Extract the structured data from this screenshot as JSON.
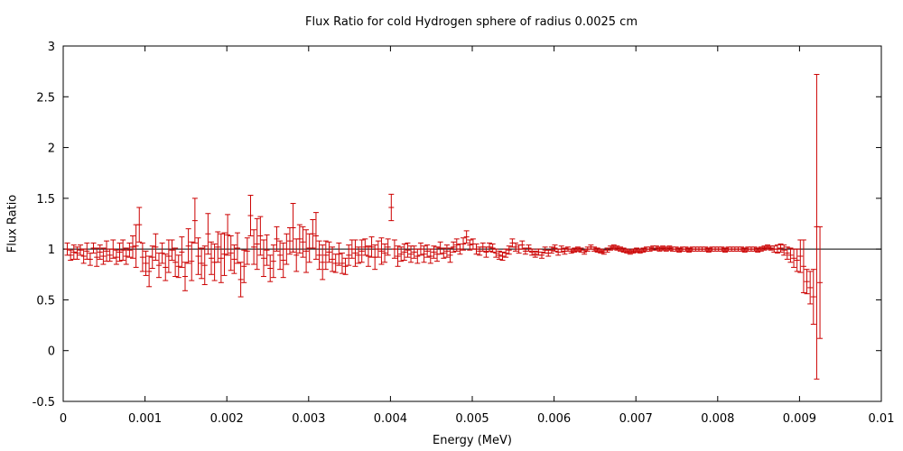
{
  "chart_data": {
    "type": "scatter",
    "title": "Flux Ratio for cold Hydrogen sphere of radius 0.0025 cm",
    "xlabel": "Energy (MeV)",
    "ylabel": "Flux Ratio",
    "xlim": [
      0,
      0.01
    ],
    "ylim": [
      -0.5,
      3
    ],
    "xticks": [
      "0",
      "0.001",
      "0.002",
      "0.003",
      "0.004",
      "0.005",
      "0.006",
      "0.007",
      "0.008",
      "0.009",
      "0.01"
    ],
    "yticks": [
      "-0.5",
      "0",
      "0.5",
      "1",
      "1.5",
      "2",
      "2.5",
      "3"
    ],
    "reference_line": {
      "y": 1,
      "color": "#000000"
    },
    "series_color": "#cc0000",
    "points": [
      {
        "x": 5e-05,
        "y": 1.0,
        "err": 0.06
      },
      {
        "x": 9e-05,
        "y": 0.94,
        "err": 0.05
      },
      {
        "x": 0.00013,
        "y": 0.97,
        "err": 0.07
      },
      {
        "x": 0.00017,
        "y": 0.96,
        "err": 0.06
      },
      {
        "x": 0.00021,
        "y": 0.99,
        "err": 0.05
      },
      {
        "x": 0.00025,
        "y": 0.93,
        "err": 0.07
      },
      {
        "x": 0.00029,
        "y": 0.98,
        "err": 0.08
      },
      {
        "x": 0.00033,
        "y": 0.9,
        "err": 0.06
      },
      {
        "x": 0.00037,
        "y": 1.01,
        "err": 0.05
      },
      {
        "x": 0.00041,
        "y": 0.92,
        "err": 0.09
      },
      {
        "x": 0.00045,
        "y": 0.97,
        "err": 0.07
      },
      {
        "x": 0.00049,
        "y": 0.93,
        "err": 0.08
      },
      {
        "x": 0.00053,
        "y": 0.98,
        "err": 0.1
      },
      {
        "x": 0.00057,
        "y": 0.94,
        "err": 0.06
      },
      {
        "x": 0.00061,
        "y": 1.0,
        "err": 0.09
      },
      {
        "x": 0.00065,
        "y": 0.92,
        "err": 0.07
      },
      {
        "x": 0.00069,
        "y": 0.97,
        "err": 0.09
      },
      {
        "x": 0.00073,
        "y": 0.99,
        "err": 0.1
      },
      {
        "x": 0.00077,
        "y": 0.93,
        "err": 0.08
      },
      {
        "x": 0.00081,
        "y": 0.99,
        "err": 0.07
      },
      {
        "x": 0.00085,
        "y": 1.02,
        "err": 0.11
      },
      {
        "x": 0.00089,
        "y": 1.03,
        "err": 0.21
      },
      {
        "x": 0.00093,
        "y": 1.24,
        "err": 0.17
      },
      {
        "x": 0.00097,
        "y": 0.92,
        "err": 0.14
      },
      {
        "x": 0.00101,
        "y": 0.86,
        "err": 0.12
      },
      {
        "x": 0.00105,
        "y": 0.78,
        "err": 0.15
      },
      {
        "x": 0.00109,
        "y": 0.92,
        "err": 0.11
      },
      {
        "x": 0.00113,
        "y": 1.02,
        "err": 0.13
      },
      {
        "x": 0.00117,
        "y": 0.84,
        "err": 0.12
      },
      {
        "x": 0.00121,
        "y": 0.96,
        "err": 0.1
      },
      {
        "x": 0.00125,
        "y": 0.82,
        "err": 0.13
      },
      {
        "x": 0.00129,
        "y": 0.93,
        "err": 0.16
      },
      {
        "x": 0.00133,
        "y": 0.99,
        "err": 0.1
      },
      {
        "x": 0.00137,
        "y": 0.87,
        "err": 0.14
      },
      {
        "x": 0.00141,
        "y": 0.83,
        "err": 0.11
      },
      {
        "x": 0.00145,
        "y": 0.97,
        "err": 0.15
      },
      {
        "x": 0.00149,
        "y": 0.73,
        "err": 0.14
      },
      {
        "x": 0.00153,
        "y": 1.03,
        "err": 0.17
      },
      {
        "x": 0.00157,
        "y": 0.88,
        "err": 0.19
      },
      {
        "x": 0.00161,
        "y": 1.28,
        "err": 0.22
      },
      {
        "x": 0.00165,
        "y": 0.93,
        "err": 0.18
      },
      {
        "x": 0.00169,
        "y": 0.86,
        "err": 0.15
      },
      {
        "x": 0.00173,
        "y": 0.84,
        "err": 0.19
      },
      {
        "x": 0.00177,
        "y": 1.15,
        "err": 0.2
      },
      {
        "x": 0.00181,
        "y": 0.91,
        "err": 0.16
      },
      {
        "x": 0.00185,
        "y": 0.87,
        "err": 0.18
      },
      {
        "x": 0.00189,
        "y": 1.02,
        "err": 0.15
      },
      {
        "x": 0.00193,
        "y": 0.91,
        "err": 0.24
      },
      {
        "x": 0.00197,
        "y": 0.95,
        "err": 0.21
      },
      {
        "x": 0.00201,
        "y": 1.14,
        "err": 0.2
      },
      {
        "x": 0.00205,
        "y": 0.96,
        "err": 0.17
      },
      {
        "x": 0.00209,
        "y": 0.9,
        "err": 0.14
      },
      {
        "x": 0.00213,
        "y": 1.01,
        "err": 0.15
      },
      {
        "x": 0.00217,
        "y": 0.7,
        "err": 0.17
      },
      {
        "x": 0.00221,
        "y": 0.83,
        "err": 0.16
      },
      {
        "x": 0.00225,
        "y": 0.98,
        "err": 0.13
      },
      {
        "x": 0.00229,
        "y": 1.33,
        "err": 0.2
      },
      {
        "x": 0.00233,
        "y": 1.02,
        "err": 0.17
      },
      {
        "x": 0.00237,
        "y": 1.05,
        "err": 0.25
      },
      {
        "x": 0.00241,
        "y": 1.13,
        "err": 0.19
      },
      {
        "x": 0.00245,
        "y": 0.91,
        "err": 0.18
      },
      {
        "x": 0.00249,
        "y": 0.99,
        "err": 0.15
      },
      {
        "x": 0.00253,
        "y": 0.81,
        "err": 0.13
      },
      {
        "x": 0.00257,
        "y": 0.88,
        "err": 0.16
      },
      {
        "x": 0.00261,
        "y": 1.1,
        "err": 0.12
      },
      {
        "x": 0.00265,
        "y": 0.94,
        "err": 0.14
      },
      {
        "x": 0.00269,
        "y": 0.89,
        "err": 0.17
      },
      {
        "x": 0.00273,
        "y": 1.0,
        "err": 0.15
      },
      {
        "x": 0.00277,
        "y": 1.08,
        "err": 0.13
      },
      {
        "x": 0.00281,
        "y": 1.21,
        "err": 0.24
      },
      {
        "x": 0.00285,
        "y": 0.94,
        "err": 0.16
      },
      {
        "x": 0.00289,
        "y": 1.1,
        "err": 0.14
      },
      {
        "x": 0.00293,
        "y": 1.07,
        "err": 0.15
      },
      {
        "x": 0.00297,
        "y": 0.98,
        "err": 0.21
      },
      {
        "x": 0.00301,
        "y": 1.01,
        "err": 0.14
      },
      {
        "x": 0.00305,
        "y": 1.15,
        "err": 0.14
      },
      {
        "x": 0.00309,
        "y": 1.13,
        "err": 0.23
      },
      {
        "x": 0.00313,
        "y": 0.94,
        "err": 0.14
      },
      {
        "x": 0.00317,
        "y": 0.87,
        "err": 0.17
      },
      {
        "x": 0.00321,
        "y": 0.94,
        "err": 0.14
      },
      {
        "x": 0.00325,
        "y": 0.97,
        "err": 0.1
      },
      {
        "x": 0.00329,
        "y": 0.9,
        "err": 0.12
      },
      {
        "x": 0.00333,
        "y": 0.86,
        "err": 0.09
      },
      {
        "x": 0.00337,
        "y": 0.95,
        "err": 0.11
      },
      {
        "x": 0.00341,
        "y": 0.86,
        "err": 0.1
      },
      {
        "x": 0.00345,
        "y": 0.83,
        "err": 0.08
      },
      {
        "x": 0.00349,
        "y": 0.94,
        "err": 0.1
      },
      {
        "x": 0.00353,
        "y": 1.0,
        "err": 0.09
      },
      {
        "x": 0.00357,
        "y": 0.96,
        "err": 0.13
      },
      {
        "x": 0.00361,
        "y": 0.94,
        "err": 0.08
      },
      {
        "x": 0.00365,
        "y": 0.98,
        "err": 0.11
      },
      {
        "x": 0.00369,
        "y": 1.02,
        "err": 0.08
      },
      {
        "x": 0.00373,
        "y": 0.93,
        "err": 0.1
      },
      {
        "x": 0.00377,
        "y": 1.02,
        "err": 0.1
      },
      {
        "x": 0.00381,
        "y": 0.92,
        "err": 0.12
      },
      {
        "x": 0.00385,
        "y": 1.0,
        "err": 0.08
      },
      {
        "x": 0.00389,
        "y": 0.98,
        "err": 0.13
      },
      {
        "x": 0.00393,
        "y": 0.96,
        "err": 0.09
      },
      {
        "x": 0.00397,
        "y": 1.02,
        "err": 0.08
      },
      {
        "x": 0.00401,
        "y": 1.41,
        "err": 0.13
      },
      {
        "x": 0.00405,
        "y": 1.0,
        "err": 0.09
      },
      {
        "x": 0.00409,
        "y": 0.93,
        "err": 0.1
      },
      {
        "x": 0.00413,
        "y": 0.95,
        "err": 0.07
      },
      {
        "x": 0.00417,
        "y": 0.97,
        "err": 0.08
      },
      {
        "x": 0.00421,
        "y": 0.99,
        "err": 0.07
      },
      {
        "x": 0.00425,
        "y": 0.95,
        "err": 0.08
      },
      {
        "x": 0.00429,
        "y": 0.97,
        "err": 0.06
      },
      {
        "x": 0.00433,
        "y": 0.93,
        "err": 0.07
      },
      {
        "x": 0.00437,
        "y": 1.0,
        "err": 0.06
      },
      {
        "x": 0.00441,
        "y": 0.95,
        "err": 0.08
      },
      {
        "x": 0.00445,
        "y": 0.98,
        "err": 0.06
      },
      {
        "x": 0.00449,
        "y": 0.93,
        "err": 0.07
      },
      {
        "x": 0.00453,
        "y": 0.97,
        "err": 0.06
      },
      {
        "x": 0.00457,
        "y": 0.95,
        "err": 0.07
      },
      {
        "x": 0.00461,
        "y": 1.01,
        "err": 0.06
      },
      {
        "x": 0.00465,
        "y": 0.96,
        "err": 0.05
      },
      {
        "x": 0.00469,
        "y": 0.98,
        "err": 0.06
      },
      {
        "x": 0.00473,
        "y": 0.94,
        "err": 0.07
      },
      {
        "x": 0.00477,
        "y": 1.02,
        "err": 0.05
      },
      {
        "x": 0.00481,
        "y": 1.04,
        "err": 0.06
      },
      {
        "x": 0.00485,
        "y": 1.0,
        "err": 0.05
      },
      {
        "x": 0.00489,
        "y": 1.05,
        "err": 0.06
      },
      {
        "x": 0.00493,
        "y": 1.12,
        "err": 0.06
      },
      {
        "x": 0.00497,
        "y": 1.04,
        "err": 0.05
      },
      {
        "x": 0.00501,
        "y": 1.05,
        "err": 0.05
      },
      {
        "x": 0.00505,
        "y": 1.0,
        "err": 0.05
      },
      {
        "x": 0.00509,
        "y": 0.98,
        "err": 0.04
      },
      {
        "x": 0.00513,
        "y": 1.02,
        "err": 0.04
      },
      {
        "x": 0.00517,
        "y": 0.97,
        "err": 0.05
      },
      {
        "x": 0.00521,
        "y": 1.02,
        "err": 0.04
      },
      {
        "x": 0.00525,
        "y": 1.01,
        "err": 0.04
      },
      {
        "x": 0.00529,
        "y": 0.96,
        "err": 0.04
      },
      {
        "x": 0.00533,
        "y": 0.94,
        "err": 0.04
      },
      {
        "x": 0.00537,
        "y": 0.93,
        "err": 0.04
      },
      {
        "x": 0.00541,
        "y": 0.96,
        "err": 0.04
      },
      {
        "x": 0.00545,
        "y": 0.99,
        "err": 0.04
      },
      {
        "x": 0.00549,
        "y": 1.06,
        "err": 0.04
      },
      {
        "x": 0.00553,
        "y": 1.02,
        "err": 0.04
      },
      {
        "x": 0.00557,
        "y": 1.0,
        "err": 0.04
      },
      {
        "x": 0.00561,
        "y": 1.04,
        "err": 0.04
      },
      {
        "x": 0.00565,
        "y": 0.98,
        "err": 0.03
      },
      {
        "x": 0.00569,
        "y": 1.01,
        "err": 0.03
      },
      {
        "x": 0.00573,
        "y": 0.97,
        "err": 0.03
      },
      {
        "x": 0.00577,
        "y": 0.95,
        "err": 0.03
      },
      {
        "x": 0.00581,
        "y": 0.97,
        "err": 0.03
      },
      {
        "x": 0.00585,
        "y": 0.94,
        "err": 0.03
      },
      {
        "x": 0.00589,
        "y": 0.99,
        "err": 0.03
      },
      {
        "x": 0.00593,
        "y": 0.96,
        "err": 0.03
      },
      {
        "x": 0.00597,
        "y": 0.99,
        "err": 0.03
      },
      {
        "x": 0.00601,
        "y": 1.01,
        "err": 0.03
      },
      {
        "x": 0.00605,
        "y": 0.97,
        "err": 0.03
      },
      {
        "x": 0.00609,
        "y": 1.0,
        "err": 0.03
      },
      {
        "x": 0.00613,
        "y": 0.98,
        "err": 0.03
      },
      {
        "x": 0.00617,
        "y": 1.0,
        "err": 0.02
      },
      {
        "x": 0.00621,
        "y": 0.98,
        "err": 0.02
      },
      {
        "x": 0.00625,
        "y": 0.99,
        "err": 0.02
      },
      {
        "x": 0.00629,
        "y": 1.0,
        "err": 0.02
      },
      {
        "x": 0.00633,
        "y": 0.99,
        "err": 0.02
      },
      {
        "x": 0.00637,
        "y": 0.97,
        "err": 0.02
      },
      {
        "x": 0.00641,
        "y": 1.0,
        "err": 0.02
      },
      {
        "x": 0.00645,
        "y": 1.02,
        "err": 0.02
      },
      {
        "x": 0.00649,
        "y": 1.0,
        "err": 0.02
      },
      {
        "x": 0.00653,
        "y": 0.99,
        "err": 0.02
      },
      {
        "x": 0.00657,
        "y": 0.98,
        "err": 0.02
      },
      {
        "x": 0.00661,
        "y": 0.97,
        "err": 0.02
      },
      {
        "x": 0.00665,
        "y": 0.99,
        "err": 0.02
      },
      {
        "x": 0.00669,
        "y": 1.01,
        "err": 0.02
      },
      {
        "x": 0.00673,
        "y": 1.02,
        "err": 0.02
      },
      {
        "x": 0.00677,
        "y": 1.01,
        "err": 0.02
      },
      {
        "x": 0.00681,
        "y": 1.0,
        "err": 0.02
      },
      {
        "x": 0.00685,
        "y": 0.99,
        "err": 0.02
      },
      {
        "x": 0.00689,
        "y": 0.98,
        "err": 0.02
      },
      {
        "x": 0.00693,
        "y": 0.97,
        "err": 0.02
      },
      {
        "x": 0.00697,
        "y": 0.98,
        "err": 0.02
      },
      {
        "x": 0.00701,
        "y": 0.99,
        "err": 0.02
      },
      {
        "x": 0.00705,
        "y": 0.98,
        "err": 0.02
      },
      {
        "x": 0.00709,
        "y": 0.99,
        "err": 0.02
      },
      {
        "x": 0.00713,
        "y": 1.0,
        "err": 0.02
      },
      {
        "x": 0.00717,
        "y": 1.0,
        "err": 0.02
      },
      {
        "x": 0.00721,
        "y": 1.01,
        "err": 0.02
      },
      {
        "x": 0.00725,
        "y": 1.01,
        "err": 0.02
      },
      {
        "x": 0.00729,
        "y": 1.0,
        "err": 0.02
      },
      {
        "x": 0.00733,
        "y": 1.01,
        "err": 0.02
      },
      {
        "x": 0.00737,
        "y": 1.0,
        "err": 0.02
      },
      {
        "x": 0.00741,
        "y": 1.01,
        "err": 0.02
      },
      {
        "x": 0.00745,
        "y": 1.0,
        "err": 0.02
      },
      {
        "x": 0.00749,
        "y": 1.0,
        "err": 0.02
      },
      {
        "x": 0.00753,
        "y": 0.99,
        "err": 0.02
      },
      {
        "x": 0.00757,
        "y": 1.0,
        "err": 0.02
      },
      {
        "x": 0.00761,
        "y": 1.0,
        "err": 0.02
      },
      {
        "x": 0.00765,
        "y": 0.99,
        "err": 0.02
      },
      {
        "x": 0.00769,
        "y": 1.0,
        "err": 0.02
      },
      {
        "x": 0.00773,
        "y": 1.0,
        "err": 0.02
      },
      {
        "x": 0.00777,
        "y": 1.0,
        "err": 0.02
      },
      {
        "x": 0.00781,
        "y": 1.0,
        "err": 0.02
      },
      {
        "x": 0.00785,
        "y": 1.0,
        "err": 0.02
      },
      {
        "x": 0.00789,
        "y": 0.99,
        "err": 0.02
      },
      {
        "x": 0.00793,
        "y": 1.0,
        "err": 0.02
      },
      {
        "x": 0.00797,
        "y": 1.0,
        "err": 0.02
      },
      {
        "x": 0.00801,
        "y": 1.0,
        "err": 0.02
      },
      {
        "x": 0.00805,
        "y": 1.0,
        "err": 0.02
      },
      {
        "x": 0.00809,
        "y": 0.99,
        "err": 0.02
      },
      {
        "x": 0.00813,
        "y": 1.0,
        "err": 0.02
      },
      {
        "x": 0.00817,
        "y": 1.0,
        "err": 0.02
      },
      {
        "x": 0.00821,
        "y": 1.0,
        "err": 0.02
      },
      {
        "x": 0.00825,
        "y": 1.0,
        "err": 0.02
      },
      {
        "x": 0.00829,
        "y": 1.0,
        "err": 0.02
      },
      {
        "x": 0.00833,
        "y": 0.99,
        "err": 0.02
      },
      {
        "x": 0.00837,
        "y": 1.0,
        "err": 0.02
      },
      {
        "x": 0.00841,
        "y": 1.0,
        "err": 0.02
      },
      {
        "x": 0.00845,
        "y": 1.0,
        "err": 0.02
      },
      {
        "x": 0.00849,
        "y": 0.99,
        "err": 0.02
      },
      {
        "x": 0.00853,
        "y": 1.0,
        "err": 0.02
      },
      {
        "x": 0.00857,
        "y": 1.01,
        "err": 0.02
      },
      {
        "x": 0.00861,
        "y": 1.02,
        "err": 0.02
      },
      {
        "x": 0.00865,
        "y": 1.01,
        "err": 0.02
      },
      {
        "x": 0.00869,
        "y": 1.0,
        "err": 0.03
      },
      {
        "x": 0.00873,
        "y": 1.0,
        "err": 0.04
      },
      {
        "x": 0.00877,
        "y": 1.01,
        "err": 0.04
      },
      {
        "x": 0.00881,
        "y": 0.99,
        "err": 0.05
      },
      {
        "x": 0.00885,
        "y": 0.96,
        "err": 0.06
      },
      {
        "x": 0.00889,
        "y": 0.94,
        "err": 0.07
      },
      {
        "x": 0.00893,
        "y": 0.91,
        "err": 0.09
      },
      {
        "x": 0.00897,
        "y": 0.89,
        "err": 0.11
      },
      {
        "x": 0.00901,
        "y": 0.93,
        "err": 0.16
      },
      {
        "x": 0.00905,
        "y": 0.83,
        "err": 0.26
      },
      {
        "x": 0.00909,
        "y": 0.68,
        "err": 0.12
      },
      {
        "x": 0.00913,
        "y": 0.62,
        "err": 0.16
      },
      {
        "x": 0.00917,
        "y": 0.53,
        "err": 0.27
      },
      {
        "x": 0.00921,
        "y": 1.22,
        "err": 1.5
      },
      {
        "x": 0.00925,
        "y": 0.67,
        "err": 0.55
      }
    ]
  }
}
